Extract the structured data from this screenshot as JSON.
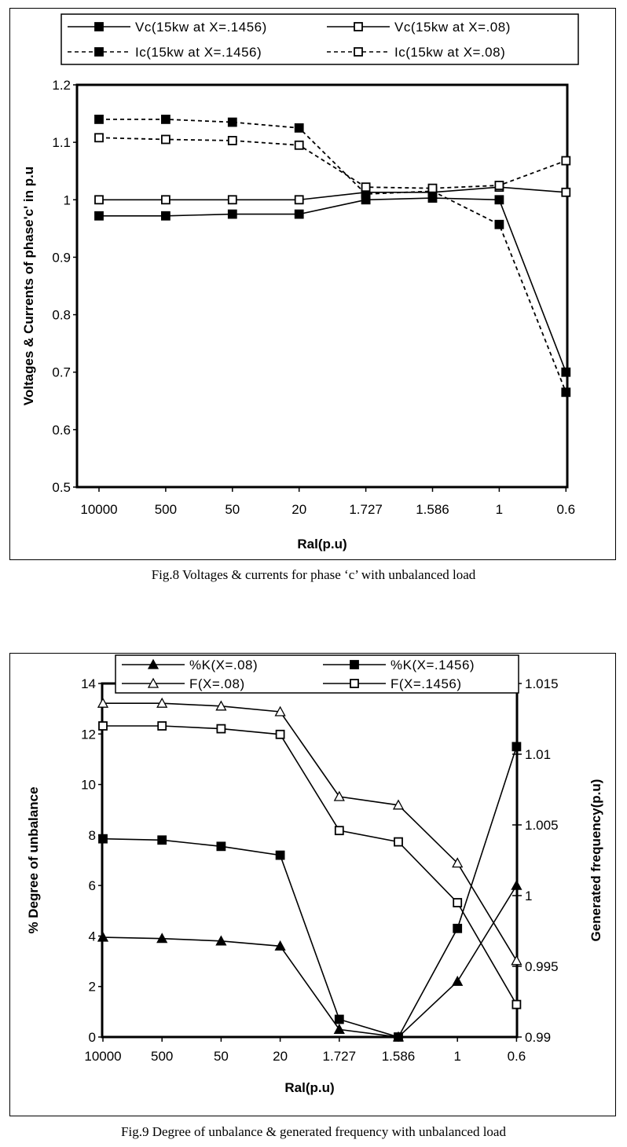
{
  "chart_data": [
    {
      "type": "line",
      "title": "",
      "xlabel": "Ral(p.u)",
      "ylabel": "Voltages & Currents of phase'c' in p.u",
      "categories": [
        "10000",
        "500",
        "50",
        "20",
        "1.727",
        "1.586",
        "1",
        "0.6"
      ],
      "ylim": [
        0.5,
        1.2
      ],
      "yticks": [
        "0.5",
        "0.6",
        "0.7",
        "0.8",
        "0.9",
        "1",
        "1.1",
        "1.2"
      ],
      "legend": "top",
      "series": [
        {
          "name": "Vc(15kw at X=.1456)",
          "marker": "filled-square",
          "line": "solid",
          "values": [
            0.972,
            0.972,
            0.975,
            0.975,
            1.0,
            1.003,
            1.0,
            0.7
          ]
        },
        {
          "name": "Vc(15kw at X=.08)",
          "marker": "hollow-square",
          "line": "solid",
          "values": [
            1.0,
            1.0,
            1.0,
            1.0,
            1.013,
            1.013,
            1.022,
            1.013
          ]
        },
        {
          "name": "Ic(15kw at X=.1456)",
          "marker": "filled-square",
          "line": "dashed",
          "values": [
            1.14,
            1.14,
            1.135,
            1.125,
            1.01,
            1.015,
            0.957,
            0.665
          ]
        },
        {
          "name": "Ic(15kw at X=.08)",
          "marker": "hollow-square",
          "line": "dashed",
          "values": [
            1.108,
            1.105,
            1.103,
            1.095,
            1.022,
            1.02,
            1.025,
            1.068
          ]
        }
      ],
      "caption": "Fig.8 Voltages & currents for phase ‘c’ with  unbalanced load"
    },
    {
      "type": "line",
      "title": "",
      "xlabel": "Ral(p.u)",
      "ylabel": "% Degree of unbalance",
      "y2label": "Generated frequency(p.u)",
      "categories": [
        "10000",
        "500",
        "50",
        "20",
        "1.727",
        "1.586",
        "1",
        "0.6"
      ],
      "ylim": [
        0,
        14
      ],
      "yticks": [
        "0",
        "2",
        "4",
        "6",
        "8",
        "10",
        "12",
        "14"
      ],
      "y2lim": [
        0.99,
        1.015
      ],
      "y2ticks": [
        "0.99",
        "0.995",
        "1",
        "1.005",
        "1.01",
        "1.015"
      ],
      "legend": "top",
      "series": [
        {
          "name": "%K(X=.08)",
          "marker": "filled-triangle",
          "axis": "left",
          "values": [
            3.95,
            3.9,
            3.8,
            3.6,
            0.3,
            0,
            2.2,
            6.0
          ]
        },
        {
          "name": "%K(X=.1456)",
          "marker": "filled-square",
          "axis": "left",
          "values": [
            7.85,
            7.8,
            7.55,
            7.2,
            0.7,
            0,
            4.3,
            11.5
          ]
        },
        {
          "name": "F(X=.08)",
          "marker": "hollow-triangle",
          "axis": "right",
          "values": [
            1.0136,
            1.0136,
            1.0134,
            1.013,
            1.007,
            1.0064,
            1.0023,
            0.9954
          ]
        },
        {
          "name": "F(X=.1456)",
          "marker": "hollow-square",
          "axis": "right",
          "values": [
            1.012,
            1.012,
            1.0118,
            1.0114,
            1.0046,
            1.0038,
            0.9995,
            0.9923
          ]
        }
      ],
      "caption": "Fig.9 Degree of unbalance & generated frequency with unbalanced load"
    }
  ]
}
